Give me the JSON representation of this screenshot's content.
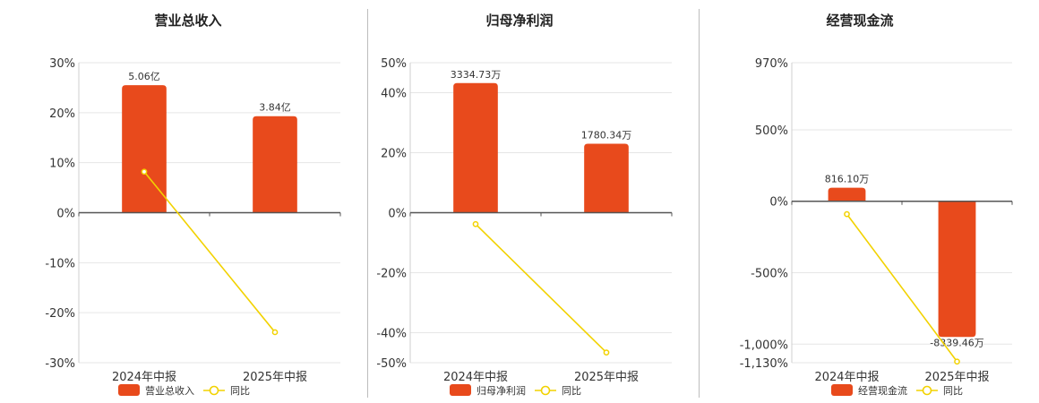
{
  "colors": {
    "bar": "#e84a1c",
    "line": "#f2d200",
    "grid": "#e6e6e6",
    "axis": "#555555"
  },
  "chart_data": [
    {
      "type": "bar",
      "title": "营业总收入",
      "categories": [
        "2024年中报",
        "2025年中报"
      ],
      "series": [
        {
          "name": "营业总收入",
          "type": "bar",
          "values": [
            25.5,
            19.3
          ],
          "labels": [
            "5.06亿",
            "3.84亿"
          ]
        },
        {
          "name": "同比",
          "type": "line",
          "values": [
            8.2,
            -23.9
          ]
        }
      ],
      "ylim": [
        -30,
        30
      ],
      "yticks": [
        30,
        20,
        10,
        0,
        -10,
        -20,
        -30
      ],
      "ytick_labels": [
        "30%",
        "20%",
        "10%",
        "0%",
        "-10%",
        "-20%",
        "-30%"
      ],
      "legend": [
        "营业总收入",
        "同比"
      ],
      "legend_position": "bottom",
      "grid": true
    },
    {
      "type": "bar",
      "title": "归母净利润",
      "categories": [
        "2024年中报",
        "2025年中报"
      ],
      "series": [
        {
          "name": "归母净利润",
          "type": "bar",
          "values": [
            43.2,
            23.0
          ],
          "labels": [
            "3334.73万",
            "1780.34万"
          ]
        },
        {
          "name": "同比",
          "type": "line",
          "values": [
            -3.8,
            -46.6
          ]
        }
      ],
      "ylim": [
        -50,
        50
      ],
      "yticks": [
        50,
        40,
        20,
        0,
        -20,
        -40,
        -50
      ],
      "ytick_labels": [
        "50%",
        "40%",
        "20%",
        "0%",
        "-20%",
        "-40%",
        "-50%"
      ],
      "legend": [
        "归母净利润",
        "同比"
      ],
      "legend_position": "bottom",
      "grid": true
    },
    {
      "type": "bar",
      "title": "经营现金流",
      "categories": [
        "2024年中报",
        "2025年中报"
      ],
      "series": [
        {
          "name": "经营现金流",
          "type": "bar",
          "values": [
            95,
            -950
          ],
          "labels": [
            "816.10万",
            "-8339.46万"
          ]
        },
        {
          "name": "同比",
          "type": "line",
          "values": [
            -90,
            -1122
          ]
        }
      ],
      "ylim": [
        -1130,
        970
      ],
      "yticks": [
        970,
        500,
        0,
        -500,
        -1000,
        -1130
      ],
      "ytick_labels": [
        "970%",
        "500%",
        "0%",
        "-500%",
        "-1,000%",
        "-1,130%"
      ],
      "legend": [
        "经营现金流",
        "同比"
      ],
      "legend_position": "bottom",
      "grid": true
    }
  ]
}
